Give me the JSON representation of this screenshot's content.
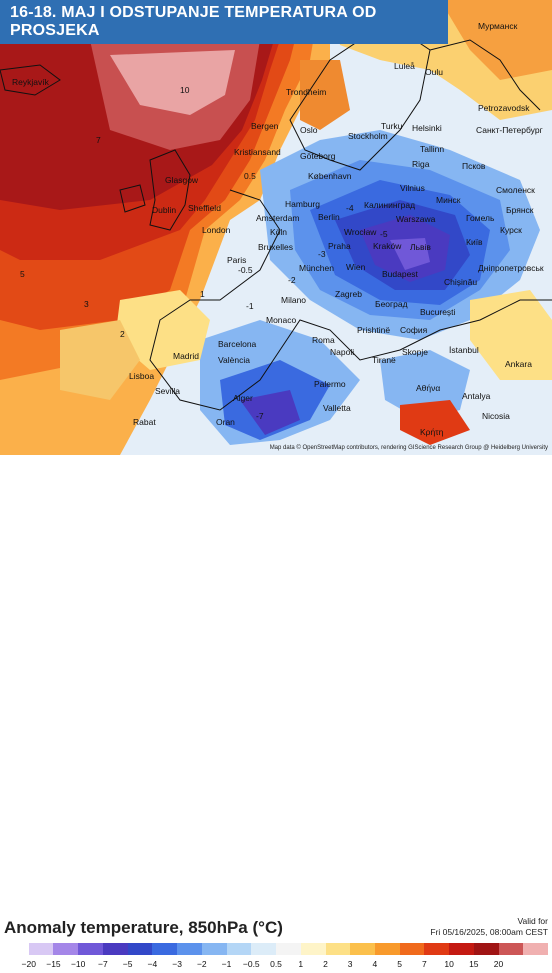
{
  "title": "16-18. MAJ I ODSTUPANJE TEMPERATURA OD PROSJEKA",
  "legend_title": "Anomaly temperature, 850hPa (°C)",
  "valid_label": "Valid for",
  "valid_time": "Fri 05/16/2025, 08:00am CEST",
  "attribution": "Map data © OpenStreetMap contributors, rendering GIScience Research Group @ Heidelberg University",
  "scale_colors": [
    "#ffffff",
    "#d8c8f4",
    "#a486e8",
    "#7058d8",
    "#4a3ac0",
    "#3248c8",
    "#3a6ae0",
    "#5c92ec",
    "#86b6f2",
    "#b4d6f6",
    "#dcecf8",
    "#f4f4f4",
    "#fef4c8",
    "#fde086",
    "#fbc04c",
    "#f89a2c",
    "#f06a1c",
    "#e03a14",
    "#c41a12",
    "#a01414",
    "#cc5656",
    "#f0b0b0"
  ],
  "scale_ticks": [
    "−20",
    "−15",
    "−10",
    "−7",
    "−5",
    "−4",
    "−3",
    "−2",
    "−1",
    "−0.5",
    "0.5",
    "1",
    "2",
    "3",
    "4",
    "5",
    "7",
    "10",
    "15",
    "20"
  ],
  "cities": [
    {
      "name": "Reykjavík"
    },
    {
      "name": "Мурманск"
    },
    {
      "name": "Luleå"
    },
    {
      "name": "Oulu"
    },
    {
      "name": "Trondheim"
    },
    {
      "name": "Petrozavodsk"
    },
    {
      "name": "Bergen"
    },
    {
      "name": "Oslo"
    },
    {
      "name": "Stockholm"
    },
    {
      "name": "Turku"
    },
    {
      "name": "Helsinki"
    },
    {
      "name": "Санкт-Петербург"
    },
    {
      "name": "Kristiansand"
    },
    {
      "name": "Göteborg"
    },
    {
      "name": "Tallinn"
    },
    {
      "name": "Glasgow"
    },
    {
      "name": "Riga"
    },
    {
      "name": "Псков"
    },
    {
      "name": "København"
    },
    {
      "name": "Vilnius"
    },
    {
      "name": "Dublin"
    },
    {
      "name": "Sheffield"
    },
    {
      "name": "Hamburg"
    },
    {
      "name": "Калининград"
    },
    {
      "name": "Минск"
    },
    {
      "name": "Смоленск"
    },
    {
      "name": "Брянск"
    },
    {
      "name": "London"
    },
    {
      "name": "Amsterdam"
    },
    {
      "name": "Berlin"
    },
    {
      "name": "Warszawa"
    },
    {
      "name": "Гомель"
    },
    {
      "name": "Bruxelles"
    },
    {
      "name": "Köln"
    },
    {
      "name": "Wrocław"
    },
    {
      "name": "Київ"
    },
    {
      "name": "Курск"
    },
    {
      "name": "Paris"
    },
    {
      "name": "Praha"
    },
    {
      "name": "Kraków"
    },
    {
      "name": "Львів"
    },
    {
      "name": "München"
    },
    {
      "name": "Wien"
    },
    {
      "name": "Budapest"
    },
    {
      "name": "Дніпропетровськ"
    },
    {
      "name": "Chișinău"
    },
    {
      "name": "Milano"
    },
    {
      "name": "Zagreb"
    },
    {
      "name": "Београд"
    },
    {
      "name": "București"
    },
    {
      "name": "Monaco"
    },
    {
      "name": "Roma"
    },
    {
      "name": "Prishtinë"
    },
    {
      "name": "София"
    },
    {
      "name": "Madrid"
    },
    {
      "name": "Barcelona"
    },
    {
      "name": "València"
    },
    {
      "name": "Napoli"
    },
    {
      "name": "Tiranë"
    },
    {
      "name": "Skopje"
    },
    {
      "name": "İstanbul"
    },
    {
      "name": "Lisboa"
    },
    {
      "name": "Sevilla"
    },
    {
      "name": "Alger"
    },
    {
      "name": "Palermo"
    },
    {
      "name": "Αθήνα"
    },
    {
      "name": "Ankara"
    },
    {
      "name": "Antalya"
    },
    {
      "name": "Valletta"
    },
    {
      "name": "Rabat"
    },
    {
      "name": "Oran"
    },
    {
      "name": "Nicosia"
    },
    {
      "name": "Κρήτη"
    }
  ],
  "contour_labels": [
    "10",
    "7",
    "5",
    "3",
    "2",
    "1",
    "0.5",
    "-0.5",
    "-1",
    "-2",
    "-3",
    "-4",
    "-5",
    "-7"
  ]
}
